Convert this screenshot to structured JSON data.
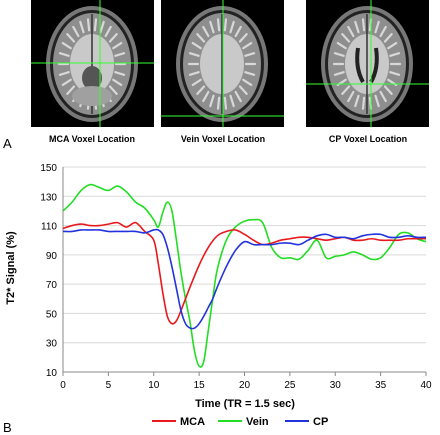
{
  "figure": {
    "panel_a_label": "A",
    "panel_b_label": "B"
  },
  "images": [
    {
      "caption": "MCA Voxel Location",
      "crosshair_color": "#33ff33",
      "view": "axial brain MRI slice"
    },
    {
      "caption": "Vein Voxel Location",
      "crosshair_color": "#33ff33",
      "view": "axial brain MRI slice"
    },
    {
      "caption": "CP Voxel Location",
      "crosshair_color": "#33ff33",
      "view": "axial brain MRI slice"
    }
  ],
  "chart_data": {
    "type": "line",
    "title": "",
    "xlabel": "Time (TR = 1.5 sec)",
    "ylabel": "T2* Signal (%)",
    "xlim": [
      0,
      40
    ],
    "ylim": [
      10,
      150
    ],
    "xticks": [
      0,
      5,
      10,
      15,
      20,
      25,
      30,
      35,
      40
    ],
    "yticks": [
      10,
      30,
      50,
      70,
      90,
      110,
      130,
      150
    ],
    "grid": "horizontal",
    "legend_position": "bottom",
    "series": [
      {
        "name": "MCA",
        "color": "#e8191d",
        "x": [
          0,
          1,
          2,
          3,
          4,
          5,
          6,
          7,
          8,
          9,
          10,
          10.5,
          11,
          11.5,
          12,
          12.5,
          13,
          14,
          15,
          16,
          17,
          18,
          19,
          20,
          21,
          22,
          23,
          24,
          25,
          26,
          27,
          28,
          29,
          30,
          31,
          32,
          33,
          34,
          35,
          36,
          37,
          38,
          39,
          40
        ],
        "values": [
          108,
          110,
          111,
          110,
          110,
          111,
          112,
          109,
          112,
          106,
          100,
          84,
          64,
          48,
          43,
          45,
          52,
          68,
          83,
          95,
          103,
          106,
          107,
          104,
          100,
          97,
          98,
          100,
          101,
          102,
          102,
          101,
          100,
          101,
          102,
          100,
          100,
          101,
          100,
          100,
          100,
          101,
          101,
          101
        ]
      },
      {
        "name": "Vein",
        "color": "#22dd22",
        "x": [
          0,
          1,
          2,
          3,
          4,
          5,
          6,
          7,
          8,
          9,
          10,
          10.5,
          11,
          11.5,
          12,
          12.5,
          13,
          13.5,
          14,
          14.5,
          15,
          15.5,
          16,
          16.5,
          17,
          18,
          19,
          20,
          21,
          22,
          23,
          24,
          25,
          26,
          27,
          28,
          29,
          30,
          31,
          32,
          33,
          34,
          35,
          36,
          37,
          38,
          39,
          40
        ],
        "values": [
          120,
          126,
          134,
          138,
          136,
          134,
          137,
          133,
          126,
          122,
          114,
          109,
          119,
          126,
          120,
          100,
          78,
          60,
          44,
          24,
          14,
          17,
          38,
          60,
          80,
          100,
          109,
          113,
          114,
          112,
          95,
          88,
          88,
          87,
          93,
          100,
          88,
          89,
          90,
          92,
          90,
          87,
          88,
          95,
          104,
          105,
          101,
          99
        ]
      },
      {
        "name": "CP",
        "color": "#2233dd",
        "x": [
          0,
          1,
          2,
          3,
          4,
          5,
          6,
          7,
          8,
          9,
          10,
          10.5,
          11,
          11.5,
          12,
          12.5,
          13,
          13.5,
          14,
          14.5,
          15,
          15.5,
          16,
          16.5,
          17,
          18,
          19,
          20,
          21,
          22,
          23,
          24,
          25,
          26,
          27,
          28,
          29,
          30,
          31,
          32,
          33,
          34,
          35,
          36,
          37,
          38,
          39,
          40
        ],
        "values": [
          106,
          106,
          107,
          107,
          107,
          106,
          106,
          106,
          106,
          105,
          107,
          107,
          104,
          95,
          82,
          67,
          52,
          43,
          40,
          40,
          43,
          48,
          54,
          60,
          68,
          82,
          93,
          99,
          97,
          97,
          97,
          98,
          98,
          97,
          100,
          103,
          104,
          102,
          102,
          101,
          103,
          104,
          104,
          102,
          102,
          103,
          102,
          102
        ]
      }
    ]
  }
}
